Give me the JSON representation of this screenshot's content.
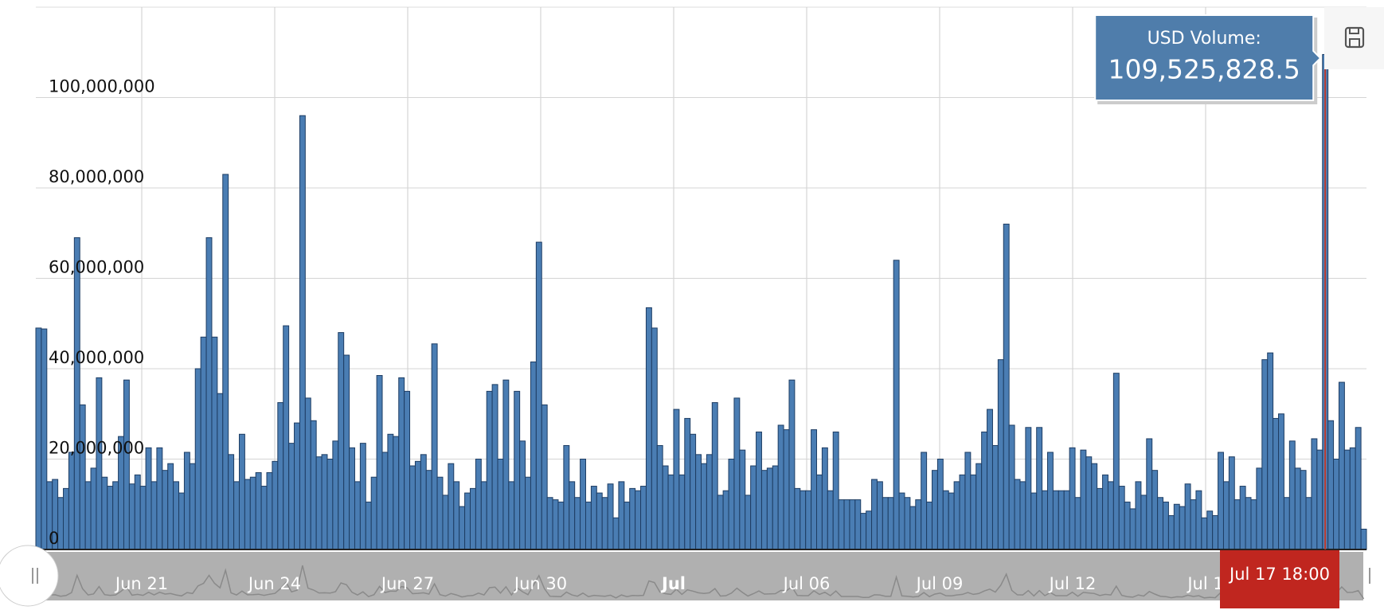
{
  "chart_data": {
    "type": "bar",
    "series": [
      {
        "name": "USD Volume",
        "color": "#4a7db3",
        "values": [
          49000000,
          48800000,
          15000000,
          15500000,
          11500000,
          13500000,
          21500000,
          69000000,
          32000000,
          15000000,
          18000000,
          38000000,
          16000000,
          14000000,
          15000000,
          25000000,
          37500000,
          14500000,
          16500000,
          14000000,
          22500000,
          15000000,
          22500000,
          17500000,
          19000000,
          15000000,
          12500000,
          21500000,
          19000000,
          40000000,
          47000000,
          69000000,
          47000000,
          34500000,
          83000000,
          21000000,
          15000000,
          25500000,
          15500000,
          16000000,
          17000000,
          14000000,
          17000000,
          19500000,
          32500000,
          49500000,
          23500000,
          28000000,
          96000000,
          33500000,
          28500000,
          20500000,
          21000000,
          20000000,
          24000000,
          48000000,
          43000000,
          22500000,
          15000000,
          23500000,
          10500000,
          16000000,
          38500000,
          21500000,
          25500000,
          25000000,
          38000000,
          35000000,
          18500000,
          19500000,
          21000000,
          17500000,
          45500000,
          16000000,
          12000000,
          19000000,
          15000000,
          9500000,
          12500000,
          13500000,
          20000000,
          15000000,
          35000000,
          36500000,
          20000000,
          37500000,
          15000000,
          35000000,
          24000000,
          16000000,
          41500000,
          68000000,
          32000000,
          11500000,
          11000000,
          10500000,
          23000000,
          15000000,
          11500000,
          20000000,
          10500000,
          14000000,
          12500000,
          11500000,
          14500000,
          7000000,
          15000000,
          10500000,
          13500000,
          13000000,
          14000000,
          53500000,
          49000000,
          23000000,
          18500000,
          16500000,
          31000000,
          16500000,
          29000000,
          25500000,
          21000000,
          19000000,
          21000000,
          32500000,
          12000000,
          13000000,
          20000000,
          33500000,
          22000000,
          12000000,
          18500000,
          26000000,
          17500000,
          18000000,
          18500000,
          27500000,
          26500000,
          37500000,
          13500000,
          13000000,
          13000000,
          26500000,
          16500000,
          22500000,
          13000000,
          26000000,
          11000000,
          11000000,
          11000000,
          11000000,
          8000000,
          8500000,
          15500000,
          15000000,
          11500000,
          11500000,
          64000000,
          12500000,
          11500000,
          9500000,
          11000000,
          21500000,
          10500000,
          17500000,
          20000000,
          13000000,
          12500000,
          15000000,
          16500000,
          21500000,
          16500000,
          19000000,
          26000000,
          31000000,
          23000000,
          42000000,
          72000000,
          27500000,
          15500000,
          15000000,
          27000000,
          12500000,
          27000000,
          13000000,
          21500000,
          13000000,
          13000000,
          13000000,
          22500000,
          11500000,
          22000000,
          20500000,
          19000000,
          13500000,
          16500000,
          15000000,
          39000000,
          14000000,
          10500000,
          9000000,
          15000000,
          12000000,
          24500000,
          17500000,
          11500000,
          10500000,
          7500000,
          10000000,
          9500000,
          14500000,
          11000000,
          13000000,
          7000000,
          8500000,
          7500000,
          21500000,
          15000000,
          20500000,
          11000000,
          14000000,
          11500000,
          11000000,
          18000000,
          42000000,
          43500000,
          29000000,
          30000000,
          11500000,
          24000000,
          18000000,
          17500000,
          11500000,
          24500000,
          22000000,
          109525828.5,
          28500000,
          20000000,
          37000000,
          22000000,
          22500000,
          27000000,
          4500000
        ]
      }
    ],
    "ylim": [
      0,
      120000000
    ],
    "yticks": [
      0,
      {
        "value": 20000000,
        "label": "20,000,000"
      },
      {
        "value": 40000000,
        "label": "40,000,000"
      },
      {
        "value": 60000000,
        "label": "60,000,000"
      },
      {
        "value": 80000000,
        "label": "80,000,000"
      },
      {
        "value": 100000000,
        "label": "100,000,000"
      }
    ],
    "grid": true,
    "navigator_labels": [
      "Jun 21",
      "Jun 24",
      "Jun 27",
      "Jun 30",
      "Jul",
      "Jul 06",
      "Jul 09",
      "Jul 12",
      "Jul 1"
    ],
    "navigator_highlight": "Jul 17 18:00",
    "tooltip": {
      "title": "USD Volume:",
      "value": "109,525,828.5"
    }
  }
}
